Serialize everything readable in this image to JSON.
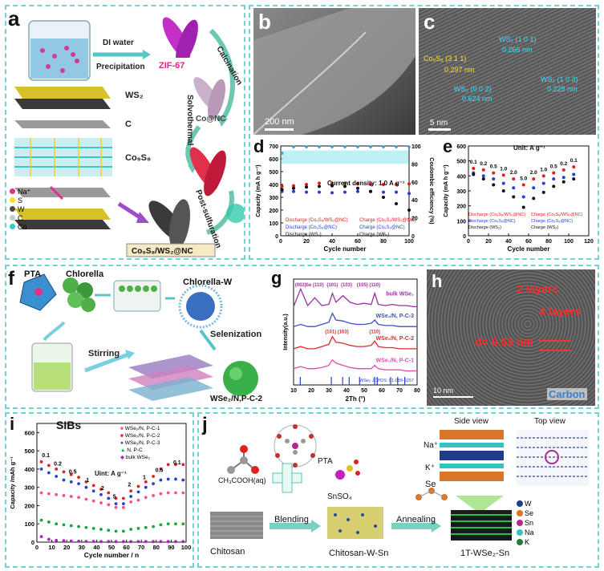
{
  "panels": {
    "a": {
      "label": "a",
      "di_water": "DI water",
      "precipitation": "Precipitation",
      "zif67": "ZIF-67",
      "calcination": "Calcination",
      "co_nc": "Co@NC",
      "solvothermal": "Solvothermal",
      "post_sulfuration": "Post-sulfuration",
      "ws2": "WS₂",
      "c": "C",
      "co9s8": "Co₉S₈",
      "product": "Co₉S₈/WS₂@NC",
      "legend": [
        "Na⁺",
        "S",
        "W",
        "C",
        "Co"
      ],
      "legend_colors": [
        "#e0308a",
        "#f2e22a",
        "#4a4a4a",
        "#c9c9c9",
        "#35c9c9"
      ]
    },
    "b": {
      "label": "b",
      "scale": "200 nm"
    },
    "c": {
      "label": "c",
      "scale": "5 nm",
      "ann1": "WS₂ (1 0 1)",
      "ann1_val": "0.266 nm",
      "ann2": "Co₉S₈ (3 1 1)",
      "ann2_val": "0.297 nm",
      "ann3": "WS₂ (0 0 2)",
      "ann3_val": "0.624 nm",
      "ann4": "WS₂ (1 0 3)",
      "ann4_val": "0.228 nm"
    },
    "d": {
      "label": "d",
      "title": "Current density: 1.0 A g⁻¹",
      "legend": [
        "Discharge (Co₉S₈/WS₂@NC)",
        "Discharge (Co₉S₈@NC)",
        "Discharge (WS₂)",
        "Charge (Co₉S₈/WS₂@NC)",
        "Charge (Co₉S₈@NC)",
        "Charge (WS₂)"
      ]
    },
    "e": {
      "label": "e",
      "unit": "Unit: A g⁻¹",
      "rates": [
        "0.1",
        "0.2",
        "0.5",
        "1.0",
        "2.0",
        "5.0",
        "2.0",
        "1.0",
        "0.5",
        "0.2",
        "0.1"
      ],
      "legend": [
        "Discharge (Co₉S₈/WS₂@NC)",
        "Discharge (Co₉S₈@NC)",
        "Discharge (WS₂)",
        "Charge (Co₉S₈/WS₂@NC)",
        "Charge (Co₉S₈@NC)",
        "Charge (WS₂)"
      ]
    },
    "f": {
      "label": "f",
      "pta": "PTA",
      "chlorella": "Chlorella",
      "chlorella_w": "Chlorella-W",
      "stirring": "Stirring",
      "selenization": "Selenization",
      "product": "WSe₂/N,P-C-2"
    },
    "g": {
      "label": "g",
      "peaks_top": [
        "(002)",
        "Se (110)",
        "(101)",
        "(103)",
        "(105)",
        "(110)"
      ],
      "peaks_mid": [
        "(101)",
        "(103)",
        "(110)"
      ],
      "series_labels": [
        "bulk WSe₂",
        "WSe₂/N, P-C-3",
        "WSe₂/N, P-C-2",
        "WSe₂/N, P-C-1"
      ],
      "series_colors": [
        "#9b2fa0",
        "#3a4fc9",
        "#e02a2a",
        "#e04aa8"
      ],
      "ref": "WSe₂ JCPDS: 01-089-5257"
    },
    "h": {
      "label": "h",
      "layers2": "2 layers",
      "layers4": "4 layers",
      "d_spacing": "d= 0.65 nm",
      "scale": "10 nm",
      "carbon": "Carbon"
    },
    "i": {
      "label": "i",
      "title": "SIBs",
      "unit": "Uint: A g⁻¹",
      "rates": [
        "0.1",
        "0.2",
        "0.5",
        "1",
        "2",
        "5",
        "2",
        "1",
        "0.5",
        "0.1"
      ],
      "legend": [
        "WSe₂/N, P-C-1",
        "WSe₂/N, P-C-2",
        "WSe₂/N, P-C-3",
        "N, P-C",
        "bulk WSe₂"
      ],
      "legend_colors": [
        "#ff4d8f",
        "#e02020",
        "#2a3fd0",
        "#1aa63a",
        "#b020c0"
      ]
    },
    "j": {
      "label": "j",
      "acetic": "CH₃COOH(aq)",
      "pta": "PTA",
      "snso4": "SnSO₄",
      "se": "Se",
      "chitosan": "Chitosan",
      "blending": "Blending",
      "chitosan_w_sn": "Chitosan-W-Sn",
      "annealing": "Annealing",
      "product": "1T-WSe₂-Sn",
      "side_view": "Side view",
      "top_view": "Top view",
      "na": "Na⁺",
      "k": "K⁺",
      "legend": [
        "W",
        "Se",
        "Sn",
        "Na",
        "K"
      ],
      "legend_colors": [
        "#1f3c8a",
        "#d9762b",
        "#b02a8c",
        "#37c2c2",
        "#2a7a3a"
      ]
    }
  },
  "chart_data": [
    {
      "id": "d",
      "type": "scatter",
      "xlabel": "Cycle number",
      "ylabel": "Capacity (mA h g⁻¹)",
      "y2label": "Coulombic efficiency (%)",
      "xlim": [
        0,
        100
      ],
      "ylim": [
        0,
        700
      ],
      "y2lim": [
        0,
        100
      ],
      "xticks": [
        0,
        20,
        40,
        60,
        80,
        100
      ],
      "yticks": [
        0,
        100,
        200,
        300,
        400,
        500,
        600,
        700
      ],
      "y2ticks": [
        0,
        20,
        40,
        60,
        80,
        100
      ],
      "x": [
        1,
        10,
        20,
        30,
        40,
        50,
        60,
        70,
        80,
        90,
        100
      ],
      "series": [
        {
          "name": "Discharge (Co₉S₈/WS₂@NC)",
          "color": "#e02020",
          "values": [
            385,
            390,
            400,
            410,
            410,
            410,
            405,
            400,
            400,
            400,
            405
          ]
        },
        {
          "name": "Discharge (Co₉S₈@NC)",
          "color": "#2a3fd0",
          "values": [
            345,
            345,
            340,
            340,
            335,
            340,
            345,
            345,
            340,
            340,
            330
          ]
        },
        {
          "name": "Discharge (WS₂)",
          "color": "#111111",
          "values": [
            360,
            370,
            380,
            385,
            390,
            385,
            370,
            345,
            300,
            250,
            200
          ]
        },
        {
          "name": "Coulombic efficiency",
          "color": "#3a9fd9",
          "axis": "y2",
          "values": [
            92,
            99,
            99,
            99,
            99,
            99,
            99,
            99,
            99,
            99,
            99
          ]
        }
      ]
    },
    {
      "id": "e",
      "type": "scatter",
      "xlabel": "Cycle number",
      "ylabel": "Capacity (mA h g⁻¹)",
      "xlim": [
        0,
        120
      ],
      "ylim": [
        0,
        600
      ],
      "xticks": [
        0,
        20,
        40,
        60,
        80,
        100,
        120
      ],
      "yticks": [
        0,
        100,
        200,
        300,
        400,
        500,
        600
      ],
      "x": [
        5,
        15,
        25,
        35,
        45,
        55,
        65,
        75,
        85,
        95,
        105
      ],
      "series": [
        {
          "name": "Discharge (Co₉S₈/WS₂@NC)",
          "color": "#e02020",
          "values": [
            450,
            440,
            420,
            405,
            380,
            340,
            380,
            400,
            420,
            440,
            460
          ]
        },
        {
          "name": "Discharge (Co₉S₈@NC)",
          "color": "#2a3fd0",
          "values": [
            420,
            400,
            380,
            350,
            320,
            260,
            320,
            350,
            380,
            390,
            410
          ]
        },
        {
          "name": "Discharge (WS₂)",
          "color": "#111111",
          "values": [
            410,
            380,
            340,
            300,
            260,
            190,
            250,
            290,
            330,
            360,
            380
          ]
        }
      ]
    },
    {
      "id": "g",
      "type": "line",
      "xlabel": "2Th (°)",
      "ylabel": "Intensity(a.u.)",
      "xlim": [
        10,
        80
      ],
      "xticks": [
        10,
        20,
        30,
        40,
        50,
        60,
        70,
        80
      ],
      "x": [
        10,
        14,
        18,
        22,
        26,
        30,
        32,
        34,
        38,
        42,
        46,
        50,
        54,
        56,
        58,
        62,
        66,
        70,
        74,
        78,
        80
      ],
      "series": [
        {
          "name": "bulk WSe₂",
          "color": "#9b2fa0",
          "offset": 3.0,
          "values": [
            0.1,
            0.9,
            0.15,
            0.5,
            0.15,
            0.2,
            0.7,
            0.3,
            0.6,
            0.3,
            0.2,
            0.25,
            0.2,
            0.7,
            0.2,
            0.15,
            0.2,
            0.15,
            0.15,
            0.1,
            0.1
          ]
        },
        {
          "name": "WSe₂/N, P-C-3",
          "color": "#3a4fc9",
          "offset": 2.0,
          "values": [
            0.2,
            0.3,
            0.2,
            0.2,
            0.3,
            0.4,
            0.8,
            0.5,
            0.45,
            0.35,
            0.3,
            0.3,
            0.35,
            0.5,
            0.3,
            0.25,
            0.25,
            0.2,
            0.2,
            0.2,
            0.2
          ]
        },
        {
          "name": "WSe₂/N, P-C-2",
          "color": "#e02a2a",
          "offset": 1.0,
          "values": [
            0.2,
            0.3,
            0.2,
            0.2,
            0.3,
            0.4,
            0.75,
            0.5,
            0.45,
            0.35,
            0.3,
            0.3,
            0.35,
            0.55,
            0.3,
            0.25,
            0.25,
            0.2,
            0.2,
            0.2,
            0.2
          ]
        },
        {
          "name": "WSe₂/N, P-C-1",
          "color": "#e04aa8",
          "offset": 0.0,
          "values": [
            0.3,
            0.4,
            0.3,
            0.3,
            0.35,
            0.45,
            0.7,
            0.55,
            0.45,
            0.35,
            0.3,
            0.3,
            0.3,
            0.45,
            0.3,
            0.25,
            0.25,
            0.25,
            0.2,
            0.2,
            0.2
          ]
        }
      ],
      "reference_peaks": [
        13.8,
        31.4,
        37.8,
        41.5,
        47.4,
        55.9,
        57.4,
        65.0,
        69.0,
        73.0
      ]
    },
    {
      "id": "i",
      "type": "scatter",
      "xlabel": "Cycle number / n",
      "ylabel": "Capacity /mAh g⁻¹",
      "xlim": [
        0,
        100
      ],
      "ylim": [
        0,
        650
      ],
      "xticks": [
        0,
        10,
        20,
        30,
        40,
        50,
        60,
        70,
        80,
        90,
        100
      ],
      "yticks": [
        0,
        100,
        200,
        300,
        400,
        500,
        600
      ],
      "x": [
        3,
        8,
        13,
        18,
        23,
        28,
        33,
        38,
        43,
        48,
        53,
        58,
        63,
        68,
        73,
        78,
        83,
        88,
        93,
        98
      ],
      "series": [
        {
          "name": "WSe₂/N, P-C-1",
          "color": "#ff4d8f",
          "values": [
            270,
            265,
            260,
            255,
            250,
            245,
            235,
            225,
            215,
            205,
            190,
            190,
            220,
            230,
            245,
            255,
            265,
            270,
            270,
            270
          ]
        },
        {
          "name": "WSe₂/N, P-C-2",
          "color": "#e02020",
          "values": [
            440,
            420,
            400,
            385,
            370,
            355,
            330,
            310,
            290,
            270,
            240,
            240,
            280,
            305,
            330,
            360,
            400,
            425,
            425,
            425
          ]
        },
        {
          "name": "WSe₂/N, P-C-3",
          "color": "#2a3fd0",
          "values": [
            400,
            380,
            360,
            340,
            330,
            320,
            300,
            280,
            260,
            240,
            210,
            210,
            250,
            275,
            300,
            320,
            340,
            345,
            345,
            340
          ]
        },
        {
          "name": "N, P-C",
          "color": "#1aa63a",
          "values": [
            120,
            110,
            100,
            95,
            90,
            85,
            80,
            75,
            70,
            65,
            60,
            60,
            70,
            75,
            80,
            85,
            95,
            100,
            100,
            100
          ]
        },
        {
          "name": "bulk WSe₂",
          "color": "#b020c0",
          "values": [
            30,
            15,
            10,
            8,
            6,
            5,
            4,
            4,
            3,
            3,
            3,
            3,
            3,
            3,
            3,
            3,
            3,
            3,
            3,
            3
          ]
        }
      ]
    }
  ]
}
